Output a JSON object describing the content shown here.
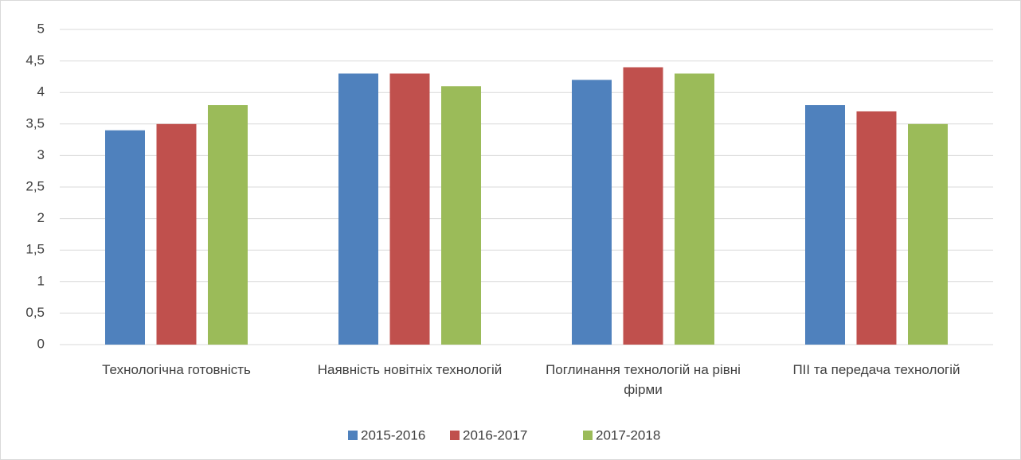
{
  "chart_data": {
    "type": "bar",
    "categories": [
      "Технологічна готовність",
      "Наявність новітніх технологій",
      "Поглинання технологій на рівні фірми",
      "ПІІ та передача технологій"
    ],
    "series": [
      {
        "name": "2015-2016",
        "color": "#4f81bd",
        "values": [
          3.4,
          4.3,
          4.2,
          3.8
        ]
      },
      {
        "name": "2016-2017",
        "color": "#c0504d",
        "values": [
          3.5,
          4.3,
          4.4,
          3.7
        ]
      },
      {
        "name": "2017-2018",
        "color": "#9bbb59",
        "values": [
          3.8,
          4.1,
          4.3,
          3.5
        ]
      }
    ],
    "ylim": [
      0,
      5
    ],
    "yticks": [
      0,
      {
        "value": 0.5,
        "label": "0,5"
      },
      1,
      {
        "value": 1.5,
        "label": "1,5"
      },
      2,
      {
        "value": 2.5,
        "label": "2,5"
      },
      3,
      {
        "value": 3.5,
        "label": "3,5"
      },
      4,
      {
        "value": 4.5,
        "label": "4,5"
      },
      5
    ],
    "grid": true,
    "legend": "bottom"
  }
}
